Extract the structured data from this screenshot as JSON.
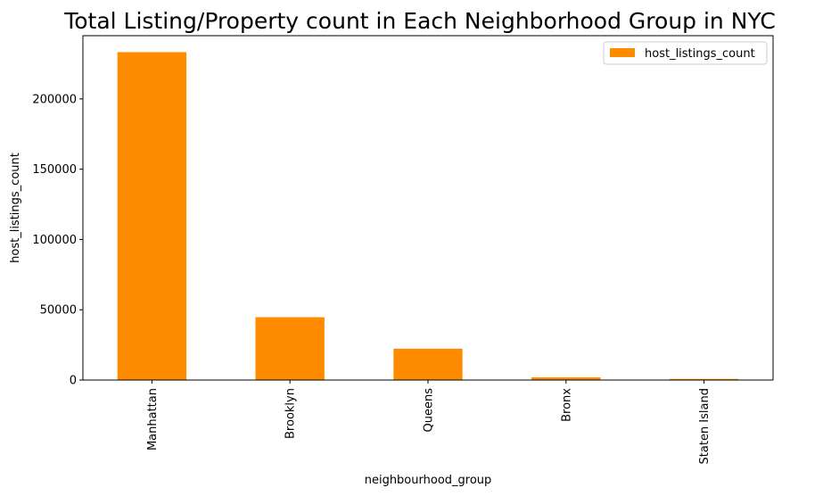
{
  "chart_data": {
    "type": "bar",
    "title": "Total Listing/Property count in Each Neighborhood Group in NYC",
    "xlabel": "neighbourhood_group",
    "ylabel": "host_listings_count",
    "categories": [
      "Manhattan",
      "Brooklyn",
      "Queens",
      "Bronx",
      "Staten Island"
    ],
    "series": [
      {
        "name": "host_listings_count",
        "values": [
          233300,
          44700,
          22300,
          1900,
          800
        ]
      }
    ],
    "ylim": [
      0,
      245000
    ],
    "yticks": [
      0,
      50000,
      100000,
      150000,
      200000
    ],
    "ytick_labels": [
      "0",
      "50000",
      "100000",
      "150000",
      "200000"
    ],
    "grid": false,
    "legend_position": "upper right",
    "colors": {
      "bar": "#ff8c00"
    }
  }
}
